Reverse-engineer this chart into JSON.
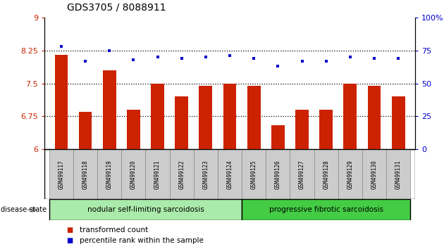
{
  "title": "GDS3705 / 8088911",
  "samples": [
    "GSM499117",
    "GSM499118",
    "GSM499119",
    "GSM499120",
    "GSM499121",
    "GSM499122",
    "GSM499123",
    "GSM499124",
    "GSM499125",
    "GSM499126",
    "GSM499127",
    "GSM499128",
    "GSM499129",
    "GSM499130",
    "GSM499131"
  ],
  "bar_values": [
    8.15,
    6.85,
    7.8,
    6.9,
    7.5,
    7.2,
    7.45,
    7.5,
    7.45,
    6.55,
    6.9,
    6.9,
    7.5,
    7.45,
    7.2
  ],
  "dot_values": [
    78,
    67,
    75,
    68,
    70,
    69,
    70,
    71,
    69,
    63,
    67,
    67,
    70,
    69,
    69
  ],
  "bar_color": "#cc2200",
  "dot_color": "#0000cc",
  "ylim_left": [
    6,
    9
  ],
  "ylim_right": [
    0,
    100
  ],
  "yticks_left": [
    6,
    6.75,
    7.5,
    8.25,
    9
  ],
  "yticks_right": [
    0,
    25,
    50,
    75,
    100
  ],
  "ytick_labels_left": [
    "6",
    "6.75",
    "7.5",
    "8.25",
    "9"
  ],
  "ytick_labels_right": [
    "0",
    "25",
    "50",
    "75",
    "100%"
  ],
  "group1_label": "nodular self-limiting sarcoidosis",
  "group2_label": "progressive fibrotic sarcoidosis",
  "group1_count": 8,
  "group2_count": 7,
  "disease_state_label": "disease state",
  "legend_bar_label": "transformed count",
  "legend_dot_label": "percentile rank within the sample",
  "group1_color": "#aaeaaa",
  "group2_color": "#44cc44",
  "header_bg": "#cccccc",
  "dotted_line_color": "#000000",
  "bar_width": 0.55,
  "hline_values": [
    6.75,
    7.5,
    8.25
  ]
}
